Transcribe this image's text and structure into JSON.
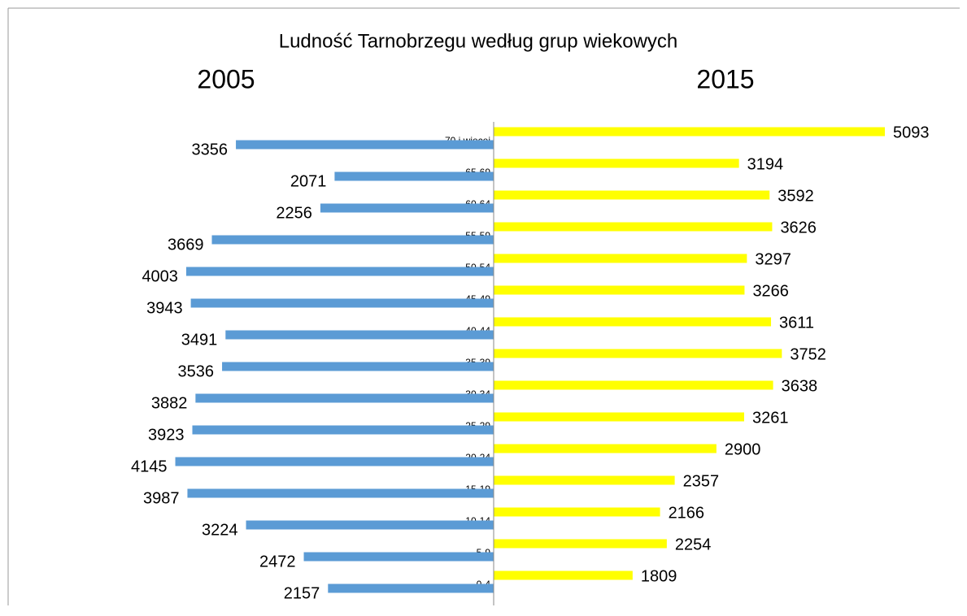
{
  "chart_data": {
    "type": "pyramid",
    "title": "Ludność Tarnobrzegu według grup wiekowych",
    "categories": [
      "70 i więcej",
      "65-69",
      "60-64",
      "55-59",
      "50-54",
      "45-49",
      "40-44",
      "35-39",
      "30-34",
      "25-29",
      "20-24",
      "15-19",
      "10-14",
      "5-9",
      "0-4"
    ],
    "series": [
      {
        "name": "2005",
        "color": "#5b9bd5",
        "side": "left",
        "values": [
          3356,
          2071,
          2256,
          3669,
          4003,
          3943,
          3491,
          3536,
          3882,
          3923,
          4145,
          3987,
          3224,
          2472,
          2157
        ]
      },
      {
        "name": "2015",
        "color": "#ffff00",
        "side": "right",
        "values": [
          5093,
          3194,
          3592,
          3626,
          3297,
          3266,
          3611,
          3752,
          3638,
          3261,
          2900,
          2357,
          2166,
          2254,
          1809
        ]
      }
    ]
  }
}
